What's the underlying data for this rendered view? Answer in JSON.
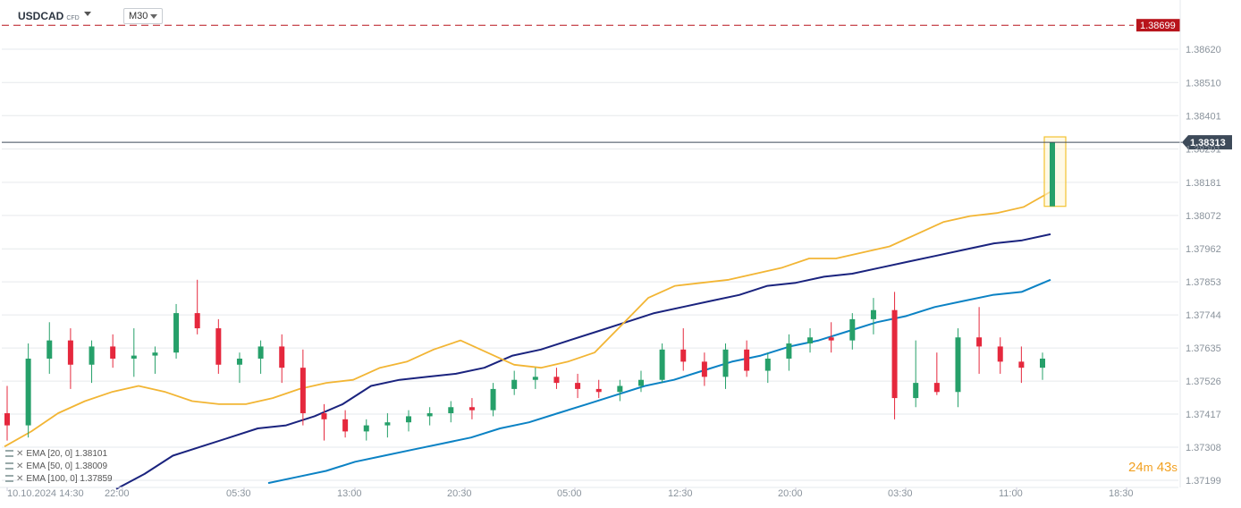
{
  "header": {
    "symbol": "USDCAD",
    "symbol_tag": "CFD",
    "timeframe": "M30"
  },
  "timer": {
    "minutes": "24",
    "minutes_unit": "m",
    "seconds": "43",
    "seconds_unit": "s"
  },
  "indicators": [
    {
      "label": "EMA [20, 0] 1.38101",
      "color": "#f2b534"
    },
    {
      "label": "EMA [50, 0] 1.38009",
      "color": "#1a237e"
    },
    {
      "label": "EMA [100, 0] 1.37859",
      "color": "#0b82c4"
    }
  ],
  "colors": {
    "bull": "#26a06a",
    "bear": "#e5283d",
    "level": "#b8141b",
    "price": "#3d4a59"
  },
  "chart_data": {
    "type": "candlestick",
    "y_ticks": [
      "1.38620",
      "1.38510",
      "1.38401",
      "1.38291",
      "1.38181",
      "1.38072",
      "1.37962",
      "1.37853",
      "1.37744",
      "1.37635",
      "1.37526",
      "1.37417",
      "1.37308",
      "1.37199"
    ],
    "x_ticks": [
      "10.10.2024 14:30",
      "22:00",
      "05:30",
      "13:00",
      "20:30",
      "05:00",
      "12:30",
      "20:00",
      "03:30",
      "11:00",
      "18:30"
    ],
    "ylim": [
      1.3714,
      1.3872
    ],
    "level_line": {
      "value": 1.38699,
      "label": "1.38699"
    },
    "price_line": {
      "value": 1.38313,
      "label": "1.38313"
    },
    "ema20": [
      1.3731,
      1.3736,
      1.3742,
      1.3746,
      1.3749,
      1.3751,
      1.3749,
      1.3746,
      1.3745,
      1.3745,
      1.3747,
      1.375,
      1.3752,
      1.3753,
      1.3757,
      1.3759,
      1.3763,
      1.3766,
      1.3762,
      1.3758,
      1.3757,
      1.3759,
      1.3762,
      1.3771,
      1.378,
      1.3784,
      1.3785,
      1.3786,
      1.3788,
      1.379,
      1.3793,
      1.3793,
      1.3795,
      1.3797,
      1.3801,
      1.3805,
      1.3807,
      1.3808,
      1.381,
      1.3815
    ],
    "ema50": [
      1.3717,
      1.3722,
      1.3728,
      1.3731,
      1.3734,
      1.3737,
      1.3738,
      1.3741,
      1.3745,
      1.3751,
      1.3753,
      1.3754,
      1.3755,
      1.3757,
      1.3761,
      1.3763,
      1.3766,
      1.3769,
      1.3772,
      1.3775,
      1.3777,
      1.3779,
      1.3781,
      1.3784,
      1.3785,
      1.3787,
      1.3788,
      1.379,
      1.3792,
      1.3794,
      1.3796,
      1.3798,
      1.3799,
      1.3801
    ],
    "ema100": [
      1.3719,
      1.3721,
      1.3723,
      1.3726,
      1.3728,
      1.373,
      1.3732,
      1.3734,
      1.3737,
      1.3739,
      1.3742,
      1.3745,
      1.3748,
      1.3751,
      1.3753,
      1.3756,
      1.3759,
      1.3761,
      1.3764,
      1.3766,
      1.3769,
      1.3772,
      1.3774,
      1.3777,
      1.3779,
      1.3781,
      1.3782,
      1.3786
    ],
    "candles": [
      [
        1.3742,
        1.3751,
        1.3733,
        1.3738
      ],
      [
        1.3738,
        1.3765,
        1.3734,
        1.376
      ],
      [
        1.376,
        1.3772,
        1.3755,
        1.3766
      ],
      [
        1.3766,
        1.377,
        1.375,
        1.3758
      ],
      [
        1.3758,
        1.3766,
        1.3752,
        1.3764
      ],
      [
        1.3764,
        1.3768,
        1.3757,
        1.376
      ],
      [
        1.376,
        1.377,
        1.3754,
        1.3761
      ],
      [
        1.3761,
        1.3764,
        1.3755,
        1.3762
      ],
      [
        1.3762,
        1.3778,
        1.376,
        1.3775
      ],
      [
        1.3775,
        1.3786,
        1.3768,
        1.377
      ],
      [
        1.377,
        1.3773,
        1.3755,
        1.3758
      ],
      [
        1.3758,
        1.3762,
        1.3752,
        1.376
      ],
      [
        1.376,
        1.3766,
        1.3755,
        1.3764
      ],
      [
        1.3764,
        1.3768,
        1.3752,
        1.3757
      ],
      [
        1.3757,
        1.3763,
        1.3738,
        1.3742
      ],
      [
        1.3742,
        1.3745,
        1.3733,
        1.374
      ],
      [
        1.374,
        1.3743,
        1.3734,
        1.3736
      ],
      [
        1.3736,
        1.374,
        1.3733,
        1.3738
      ],
      [
        1.3738,
        1.3742,
        1.3734,
        1.3739
      ],
      [
        1.3739,
        1.3743,
        1.3736,
        1.3741
      ],
      [
        1.3741,
        1.3744,
        1.3738,
        1.3742
      ],
      [
        1.3742,
        1.3746,
        1.3739,
        1.3744
      ],
      [
        1.3744,
        1.3747,
        1.374,
        1.3743
      ],
      [
        1.3743,
        1.3752,
        1.3741,
        1.375
      ],
      [
        1.375,
        1.3756,
        1.3748,
        1.3753
      ],
      [
        1.3753,
        1.3757,
        1.375,
        1.3754
      ],
      [
        1.3754,
        1.3757,
        1.375,
        1.3752
      ],
      [
        1.3752,
        1.3755,
        1.3747,
        1.375
      ],
      [
        1.375,
        1.3753,
        1.3747,
        1.3749
      ],
      [
        1.3749,
        1.3753,
        1.3746,
        1.3751
      ],
      [
        1.3751,
        1.3756,
        1.3749,
        1.3753
      ],
      [
        1.3753,
        1.3765,
        1.3752,
        1.3763
      ],
      [
        1.3763,
        1.377,
        1.3756,
        1.3759
      ],
      [
        1.3759,
        1.3762,
        1.3751,
        1.3754
      ],
      [
        1.3754,
        1.3765,
        1.375,
        1.3763
      ],
      [
        1.3763,
        1.3766,
        1.3754,
        1.3756
      ],
      [
        1.3756,
        1.3762,
        1.3752,
        1.376
      ],
      [
        1.376,
        1.3768,
        1.3756,
        1.3765
      ],
      [
        1.3765,
        1.377,
        1.3762,
        1.3767
      ],
      [
        1.3767,
        1.3772,
        1.3762,
        1.3766
      ],
      [
        1.3766,
        1.3775,
        1.3763,
        1.3773
      ],
      [
        1.3773,
        1.378,
        1.3768,
        1.3776
      ],
      [
        1.3776,
        1.3782,
        1.374,
        1.3747
      ],
      [
        1.3747,
        1.3766,
        1.3744,
        1.3752
      ],
      [
        1.3752,
        1.3762,
        1.3748,
        1.3749
      ],
      [
        1.3749,
        1.377,
        1.3744,
        1.3767
      ],
      [
        1.3767,
        1.3777,
        1.3755,
        1.3764
      ],
      [
        1.3764,
        1.3767,
        1.3755,
        1.3759
      ],
      [
        1.3759,
        1.3764,
        1.3752,
        1.3757
      ],
      [
        1.3757,
        1.3762,
        1.3753,
        1.376
      ]
    ]
  }
}
